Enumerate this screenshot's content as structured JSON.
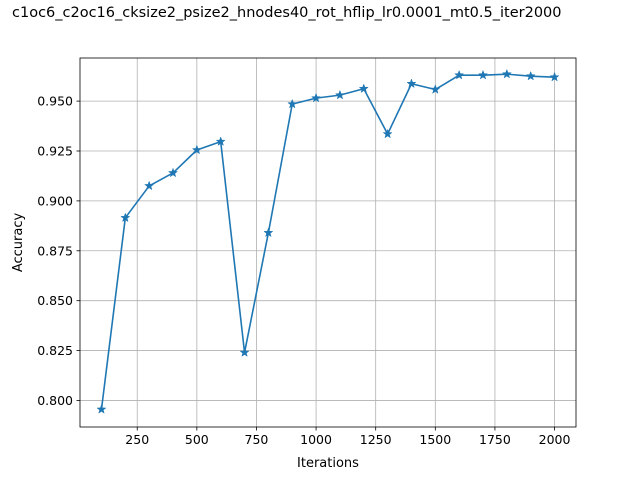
{
  "chart_data": {
    "type": "line",
    "title": "c1oc6_c2oc16_cksize2_psize2_hnodes40_rot_hflip_lr0.0001_mt0.5_iter2000",
    "xlabel": "Iterations",
    "ylabel": "Accuracy",
    "xlim": [
      10,
      2090
    ],
    "ylim": [
      0.7867,
      0.9716
    ],
    "xticks": [
      250,
      500,
      750,
      1000,
      1250,
      1500,
      1750,
      2000
    ],
    "yticks": [
      0.8,
      0.825,
      0.85,
      0.875,
      0.9,
      0.925,
      0.95
    ],
    "ytick_labels": [
      "0.800",
      "0.825",
      "0.850",
      "0.875",
      "0.900",
      "0.925",
      "0.950"
    ],
    "grid": true,
    "marker": "star",
    "series": [
      {
        "color": "#1f77b4",
        "x": [
          100,
          200,
          300,
          400,
          500,
          600,
          700,
          800,
          900,
          1000,
          1100,
          1200,
          1300,
          1400,
          1500,
          1600,
          1700,
          1800,
          1900,
          2000
        ],
        "y": [
          0.7955,
          0.8915,
          0.9075,
          0.914,
          0.9255,
          0.9297,
          0.824,
          0.884,
          0.9485,
          0.9515,
          0.953,
          0.9562,
          0.9335,
          0.9587,
          0.9558,
          0.963,
          0.963,
          0.9635,
          0.9625,
          0.962
        ]
      }
    ]
  }
}
